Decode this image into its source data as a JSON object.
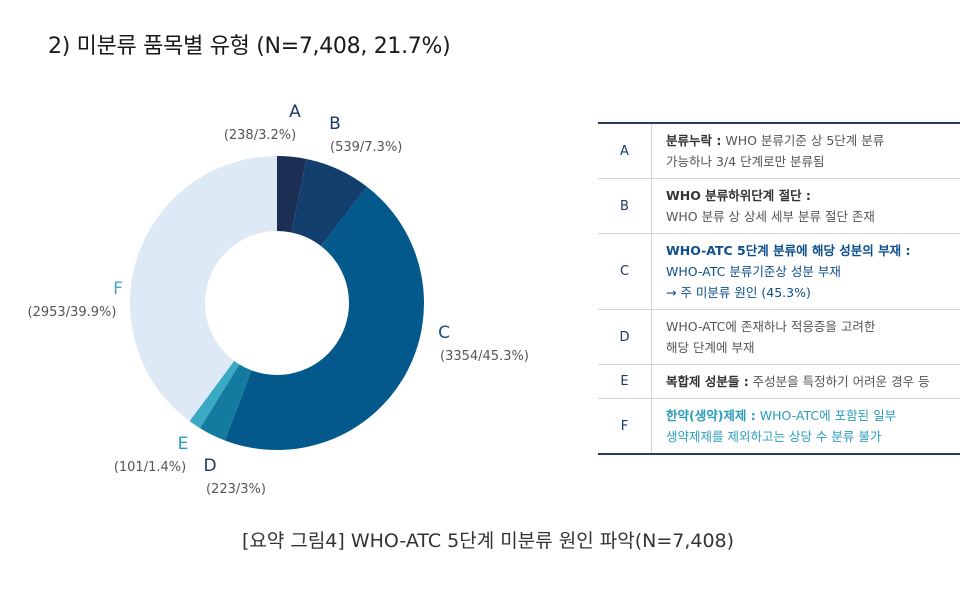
{
  "title": "2) 미분류 품목별 유형 (N=7,408, 21.7%)",
  "caption": "[요약 그림4] WHO-ATC 5단계 미분류 원인 파악(N=7,408)",
  "chart_data": {
    "type": "pie",
    "style": "donut",
    "total": 7408,
    "slices": [
      {
        "label": "A",
        "count": 238,
        "percent": 3.2,
        "value_label": "(238/3.2%)",
        "color": "#1b2f55",
        "label_color": "#1b3a66"
      },
      {
        "label": "B",
        "count": 539,
        "percent": 7.3,
        "value_label": "(539/7.3%)",
        "color": "#123f6e",
        "label_color": "#1b3a66"
      },
      {
        "label": "C",
        "count": 3354,
        "percent": 45.3,
        "value_label": "(3354/45.3%)",
        "color": "#03588c",
        "label_color": "#1b4f80"
      },
      {
        "label": "D",
        "count": 223,
        "percent": 3.0,
        "value_label": "(223/3%)",
        "color": "#137ba0",
        "label_color": "#1b3a66"
      },
      {
        "label": "E",
        "count": 101,
        "percent": 1.4,
        "value_label": "(101/1.4%)",
        "color": "#3aa9c4",
        "label_color": "#2a9dbb"
      },
      {
        "label": "F",
        "count": 2953,
        "percent": 39.9,
        "value_label": "(2953/39.9%)",
        "color": "#dde9f4",
        "label_color": "#4fa6c8"
      }
    ]
  },
  "legend": [
    {
      "code": "A",
      "category": "분류누락 :",
      "text_inline": " WHO 분류기준 상 5단계 분류",
      "lines": [
        "가능하나 3/4 단계로만 분류됨"
      ],
      "style": ""
    },
    {
      "code": "B",
      "category": "WHO 분류하위단계 절단 :",
      "text_inline": "",
      "lines": [
        "WHO 분류 상 상세 세부 분류 절단 존재"
      ],
      "style": ""
    },
    {
      "code": "C",
      "category": "WHO-ATC 5단계 분류에 해당 성분의 부재 :",
      "text_inline": "",
      "lines": [
        "WHO-ATC 분류기준상 성분 부재",
        "→ 주 미분류 원인 (45.3%)"
      ],
      "style": "emph"
    },
    {
      "code": "D",
      "category": "",
      "text_inline": "WHO-ATC에 존재하나 적응증을 고려한",
      "lines": [
        "해당 단계에 부재"
      ],
      "style": ""
    },
    {
      "code": "E",
      "category": "복합제 성분들 :",
      "text_inline": " 주성분을 특정하기 어려운 경우 등",
      "lines": [],
      "style": ""
    },
    {
      "code": "F",
      "category": "한약(생약)제제 :",
      "text_inline": " WHO-ATC에 포함된 일부",
      "lines": [
        "생약제제를 제외하고는 상당 수 분류 불가"
      ],
      "style": "teal"
    }
  ]
}
